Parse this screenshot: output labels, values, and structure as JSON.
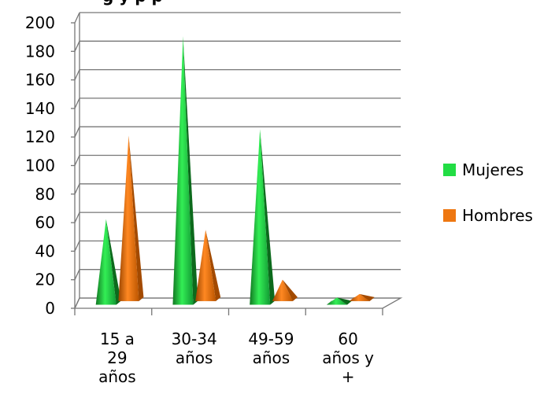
{
  "chart_data": {
    "type": "bar",
    "style": "3d-pyramid",
    "title_partial": "g                               y   p       p",
    "categories": [
      [
        "15 a",
        "29",
        "años"
      ],
      [
        "30-34",
        "años"
      ],
      [
        "49-59",
        "años"
      ],
      [
        "60",
        "años y",
        "+"
      ]
    ],
    "series": [
      {
        "name": "Mujeres",
        "color": "#22dd44",
        "values": [
          60,
          188,
          123,
          5
        ]
      },
      {
        "name": "Hombres",
        "color": "#ee7711",
        "values": [
          116,
          50,
          15,
          5
        ]
      }
    ],
    "ylim": [
      0,
      200
    ],
    "yticks": [
      0,
      20,
      40,
      60,
      80,
      100,
      120,
      140,
      160,
      180,
      200
    ],
    "grid": true,
    "legend_position": "right"
  }
}
